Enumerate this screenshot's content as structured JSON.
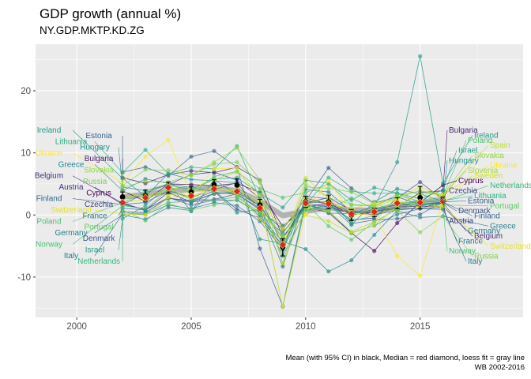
{
  "title": "GDP growth (annual %)",
  "subtitle": "NY.GDP.MKTP.KD.ZG",
  "caption_line1": "Mean (with 95% CI) in black, Median = red diamond, loess fit = gray line",
  "caption_line2": "WB 2002-2016",
  "chart_data": {
    "type": "line",
    "xlim": [
      1998.2,
      2019.5
    ],
    "ylim": [
      -16.5,
      27.5
    ],
    "x_ticks": [
      2000,
      2005,
      2010,
      2015
    ],
    "y_ticks": [
      -10,
      0,
      10,
      20
    ],
    "x_tick_labels": [
      "2000",
      "2005",
      "2010",
      "2015"
    ],
    "y_tick_labels": [
      "-10",
      "0",
      "10",
      "20"
    ],
    "grid": true,
    "years": [
      2002,
      2003,
      2004,
      2005,
      2006,
      2007,
      2008,
      2009,
      2010,
      2011,
      2012,
      2013,
      2014,
      2015,
      2016
    ],
    "series": [
      {
        "name": "Austria",
        "color": "#46327e",
        "values": [
          1.7,
          0.9,
          2.7,
          2.1,
          3.4,
          3.6,
          1.5,
          -3.8,
          1.9,
          2.8,
          0.7,
          0.0,
          0.8,
          1.1,
          2.0
        ]
      },
      {
        "name": "Belgium",
        "color": "#472d7b",
        "values": [
          1.9,
          0.8,
          3.6,
          2.1,
          2.5,
          3.4,
          0.8,
          -2.3,
          2.7,
          1.8,
          0.2,
          0.0,
          1.3,
          1.4,
          1.4
        ]
      },
      {
        "name": "Bulgaria",
        "color": "#481f70",
        "values": [
          6.0,
          5.1,
          6.5,
          7.1,
          6.8,
          7.7,
          5.6,
          -3.6,
          1.3,
          1.9,
          0.0,
          0.5,
          1.3,
          3.6,
          3.9
        ]
      },
      {
        "name": "Cyprus",
        "color": "#440154",
        "values": [
          3.9,
          2.2,
          5.0,
          4.9,
          4.7,
          5.1,
          3.6,
          -1.8,
          1.3,
          0.4,
          -2.9,
          -5.8,
          -1.3,
          2.0,
          4.8
        ]
      },
      {
        "name": "Czechia",
        "color": "#414487",
        "values": [
          1.6,
          3.6,
          4.9,
          6.5,
          6.9,
          5.6,
          2.7,
          -4.8,
          2.3,
          1.8,
          -0.8,
          -0.5,
          2.7,
          5.3,
          2.5
        ]
      },
      {
        "name": "Denmark",
        "color": "#3b528b",
        "values": [
          0.5,
          0.4,
          2.7,
          2.3,
          3.9,
          0.9,
          -0.5,
          -4.9,
          1.9,
          1.3,
          0.2,
          0.9,
          1.6,
          1.6,
          2.0
        ]
      },
      {
        "name": "Estonia",
        "color": "#355f8d",
        "values": [
          6.9,
          7.7,
          6.3,
          9.4,
          10.3,
          7.7,
          -5.4,
          -14.7,
          2.3,
          7.6,
          4.3,
          1.9,
          2.9,
          1.7,
          2.1
        ]
      },
      {
        "name": "Finland",
        "color": "#31688e",
        "values": [
          1.7,
          2.0,
          3.9,
          2.8,
          4.1,
          5.2,
          0.7,
          -8.3,
          3.0,
          2.6,
          -1.4,
          -0.8,
          -0.6,
          0.1,
          2.1
        ]
      },
      {
        "name": "France",
        "color": "#2c728e",
        "values": [
          1.1,
          0.8,
          2.8,
          1.6,
          2.4,
          2.4,
          0.2,
          -2.9,
          1.9,
          2.2,
          0.3,
          0.6,
          1.0,
          1.1,
          1.2
        ]
      },
      {
        "name": "Germany",
        "color": "#287c8e",
        "values": [
          0.0,
          -0.7,
          1.2,
          0.7,
          3.7,
          3.3,
          1.1,
          -5.6,
          4.1,
          3.7,
          0.5,
          0.5,
          1.9,
          1.5,
          1.9
        ]
      },
      {
        "name": "Greece",
        "color": "#24868e",
        "values": [
          3.9,
          5.8,
          5.1,
          0.6,
          5.7,
          3.3,
          -0.3,
          -4.3,
          -5.5,
          -9.1,
          -7.3,
          -3.2,
          0.7,
          -0.4,
          -0.2
        ]
      },
      {
        "name": "Hungary",
        "color": "#21918c",
        "values": [
          4.5,
          3.9,
          5.0,
          4.4,
          3.8,
          0.4,
          0.9,
          -6.6,
          0.7,
          1.7,
          -1.6,
          2.1,
          4.2,
          3.4,
          2.2
        ]
      },
      {
        "name": "Ireland",
        "color": "#1f9a8a",
        "values": [
          5.9,
          3.0,
          6.7,
          5.7,
          5.5,
          5.2,
          -3.9,
          -4.6,
          1.8,
          0.3,
          0.2,
          1.4,
          8.5,
          25.6,
          5.1
        ]
      },
      {
        "name": "Israel",
        "color": "#1fa188",
        "values": [
          -0.6,
          1.5,
          4.8,
          4.1,
          5.8,
          6.0,
          3.5,
          1.2,
          5.6,
          5.1,
          2.4,
          4.4,
          3.5,
          2.6,
          4.0
        ]
      },
      {
        "name": "Italy",
        "color": "#2a788e",
        "values": [
          0.2,
          0.1,
          1.6,
          1.0,
          2.0,
          1.5,
          -1.0,
          -5.5,
          1.7,
          0.7,
          -2.9,
          -1.7,
          0.1,
          1.0,
          0.9
        ]
      },
      {
        "name": "Lithuania",
        "color": "#2ab07f",
        "values": [
          6.8,
          10.5,
          6.6,
          7.7,
          7.4,
          11.1,
          2.6,
          -14.8,
          1.6,
          6.0,
          3.8,
          3.5,
          3.5,
          2.0,
          2.3
        ]
      },
      {
        "name": "Netherlands",
        "color": "#35b779",
        "values": [
          0.1,
          0.3,
          2.0,
          2.2,
          3.5,
          3.7,
          1.7,
          -3.8,
          1.3,
          1.6,
          -1.0,
          -0.1,
          1.4,
          2.3,
          2.2
        ]
      },
      {
        "name": "Norway",
        "color": "#44bf70",
        "values": [
          1.5,
          1.0,
          4.0,
          2.6,
          2.4,
          2.9,
          0.4,
          -1.7,
          0.7,
          1.0,
          2.7,
          1.0,
          2.0,
          2.0,
          1.1
        ]
      },
      {
        "name": "Poland",
        "color": "#4ec36b",
        "values": [
          2.0,
          3.6,
          5.1,
          3.5,
          6.2,
          7.0,
          4.2,
          2.8,
          3.6,
          5.0,
          1.6,
          1.4,
          3.3,
          3.8,
          3.1
        ]
      },
      {
        "name": "Portugal",
        "color": "#5ec962",
        "values": [
          0.8,
          -0.9,
          1.8,
          0.8,
          1.6,
          2.5,
          0.2,
          -3.0,
          1.9,
          -1.8,
          -4.0,
          -1.1,
          0.9,
          1.8,
          1.6
        ]
      },
      {
        "name": "Russia",
        "color": "#7ad151",
        "values": [
          4.7,
          7.3,
          7.2,
          6.4,
          8.2,
          8.5,
          5.2,
          -7.8,
          4.5,
          4.3,
          3.7,
          1.8,
          0.7,
          -2.8,
          -0.2
        ]
      },
      {
        "name": "Slovakia",
        "color": "#8fd744",
        "values": [
          4.5,
          5.4,
          5.3,
          6.4,
          8.5,
          10.8,
          5.6,
          -5.4,
          5.0,
          2.8,
          1.7,
          1.5,
          2.8,
          3.9,
          3.3
        ]
      },
      {
        "name": "Slovenia",
        "color": "#a5db36",
        "values": [
          3.8,
          2.8,
          4.4,
          4.0,
          5.7,
          6.9,
          3.3,
          -7.8,
          1.2,
          0.6,
          -2.7,
          -1.1,
          3.0,
          2.3,
          3.1
        ]
      },
      {
        "name": "Spain",
        "color": "#bddf26",
        "values": [
          2.9,
          3.2,
          3.2,
          3.7,
          4.2,
          3.8,
          1.1,
          -3.6,
          0.0,
          -1.0,
          -2.9,
          -1.7,
          1.4,
          3.4,
          3.3
        ]
      },
      {
        "name": "Sweden",
        "color": "#d2e21b",
        "values": [
          2.1,
          2.4,
          4.3,
          2.8,
          4.7,
          3.4,
          -0.6,
          -5.2,
          6.0,
          2.7,
          -0.3,
          1.2,
          2.6,
          4.5,
          3.2
        ]
      },
      {
        "name": "Switzerland",
        "color": "#e5e419",
        "values": [
          0.2,
          0.0,
          2.8,
          3.0,
          4.0,
          4.1,
          2.2,
          -2.2,
          2.9,
          1.8,
          1.0,
          1.9,
          2.4,
          1.2,
          1.4
        ]
      },
      {
        "name": "Ukraine",
        "color": "#fde725",
        "values": [
          5.2,
          9.4,
          12.1,
          3.1,
          7.4,
          7.6,
          2.3,
          -14.8,
          0.3,
          5.5,
          0.2,
          0.0,
          -6.6,
          -9.8,
          2.4
        ]
      }
    ],
    "mean": [
      2.9,
      3.1,
      4.4,
      3.7,
      4.9,
      4.8,
      1.6,
      -5.2,
      2.1,
      2.1,
      0.0,
      0.4,
      1.9,
      2.8,
      2.4
    ],
    "ci_halfwidth": [
      0.8,
      0.9,
      0.9,
      0.9,
      0.8,
      1.0,
      0.9,
      1.4,
      0.9,
      1.1,
      0.9,
      0.7,
      0.9,
      1.8,
      0.5
    ],
    "median": [
      2.0,
      2.8,
      4.4,
      3.1,
      4.2,
      3.8,
      1.1,
      -4.8,
      1.9,
      1.8,
      0.2,
      0.5,
      1.9,
      2.0,
      2.2
    ],
    "loess": [
      2.9,
      3.3,
      3.8,
      4.2,
      4.3,
      3.9,
      2.2,
      -0.1,
      0.6,
      1.2,
      0.8,
      0.7,
      1.3,
      2.0,
      2.4
    ],
    "labels_left": [
      {
        "text": "Ireland",
        "color": "#1f9a8a"
      },
      {
        "text": "Estonia",
        "color": "#355f8d"
      },
      {
        "text": "Lithuania",
        "color": "#2ab07f"
      },
      {
        "text": "Hungary",
        "color": "#21918c"
      },
      {
        "text": "Ukraine",
        "color": "#fde725"
      },
      {
        "text": "Bulgaria",
        "color": "#481f70"
      },
      {
        "text": "Greece",
        "color": "#24868e"
      },
      {
        "text": "Slovakia",
        "color": "#8fd744"
      },
      {
        "text": "Belgium",
        "color": "#472d7b"
      },
      {
        "text": "Russia",
        "color": "#7ad151"
      },
      {
        "text": "Austria",
        "color": "#46327e"
      },
      {
        "text": "Cyprus",
        "color": "#440154"
      },
      {
        "text": "Finland",
        "color": "#31688e"
      },
      {
        "text": "Czechia",
        "color": "#414487"
      },
      {
        "text": "Switzerland",
        "color": "#e5e419"
      },
      {
        "text": "France",
        "color": "#2c728e"
      },
      {
        "text": "Poland",
        "color": "#4ec36b"
      },
      {
        "text": "Portugal",
        "color": "#5ec962"
      },
      {
        "text": "Germany",
        "color": "#287c8e"
      },
      {
        "text": "Denmark",
        "color": "#3b528b"
      },
      {
        "text": "Norway",
        "color": "#44bf70"
      },
      {
        "text": "Israel",
        "color": "#1fa188"
      },
      {
        "text": "Italy",
        "color": "#2a788e"
      },
      {
        "text": "Netherlands",
        "color": "#35b779"
      }
    ],
    "labels_right": [
      {
        "text": "Bulgaria",
        "color": "#481f70"
      },
      {
        "text": "Ireland",
        "color": "#1f9a8a"
      },
      {
        "text": "Poland",
        "color": "#4ec36b"
      },
      {
        "text": "Spain",
        "color": "#bddf26"
      },
      {
        "text": "Israel",
        "color": "#1fa188"
      },
      {
        "text": "Slovakia",
        "color": "#8fd744"
      },
      {
        "text": "Hungary",
        "color": "#21918c"
      },
      {
        "text": "Ukraine",
        "color": "#fde725"
      },
      {
        "text": "Slovenia",
        "color": "#a5db36"
      },
      {
        "text": "Sweden",
        "color": "#d2e21b"
      },
      {
        "text": "Cyprus",
        "color": "#440154"
      },
      {
        "text": "Netherlands",
        "color": "#35b779"
      },
      {
        "text": "Czechia",
        "color": "#414487"
      },
      {
        "text": "Lithuania",
        "color": "#2ab07f"
      },
      {
        "text": "Estonia",
        "color": "#355f8d"
      },
      {
        "text": "Portugal",
        "color": "#5ec962"
      },
      {
        "text": "Denmark",
        "color": "#3b528b"
      },
      {
        "text": "Finland",
        "color": "#31688e"
      },
      {
        "text": "Austria",
        "color": "#46327e"
      },
      {
        "text": "Greece",
        "color": "#24868e"
      },
      {
        "text": "Germany",
        "color": "#287c8e"
      },
      {
        "text": "Belgium",
        "color": "#472d7b"
      },
      {
        "text": "France",
        "color": "#2c728e"
      },
      {
        "text": "Switzerland",
        "color": "#e5e419"
      },
      {
        "text": "Norway",
        "color": "#44bf70"
      },
      {
        "text": "Russia",
        "color": "#7ad151"
      },
      {
        "text": "Italy",
        "color": "#2a788e"
      }
    ]
  }
}
